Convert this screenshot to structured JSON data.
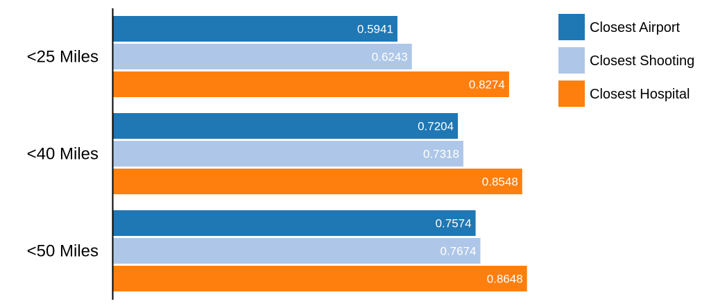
{
  "chart_data": {
    "type": "bar",
    "orientation": "horizontal",
    "categories": [
      "<25 Miles",
      "<40 Miles",
      "<50 Miles"
    ],
    "series": [
      {
        "name": "Closest Airport",
        "color": "#1f77b4",
        "values": [
          0.5941,
          0.7204,
          0.7574
        ],
        "labels": [
          "0.5941",
          "0.7204",
          "0.7574"
        ]
      },
      {
        "name": "Closest Shooting",
        "color": "#aec7e8",
        "values": [
          0.6243,
          0.7318,
          0.7674
        ],
        "labels": [
          "0.6243",
          "0.7318",
          "0.7674"
        ]
      },
      {
        "name": "Closest Hospital",
        "color": "#ff7f0e",
        "values": [
          0.8274,
          0.8548,
          0.8648
        ],
        "labels": [
          "0.8274",
          "0.8548",
          "0.8648"
        ]
      }
    ],
    "xlim": [
      0,
      1
    ],
    "grid": false,
    "legend_position": "top-right",
    "title": "",
    "xlabel": "",
    "ylabel": ""
  }
}
